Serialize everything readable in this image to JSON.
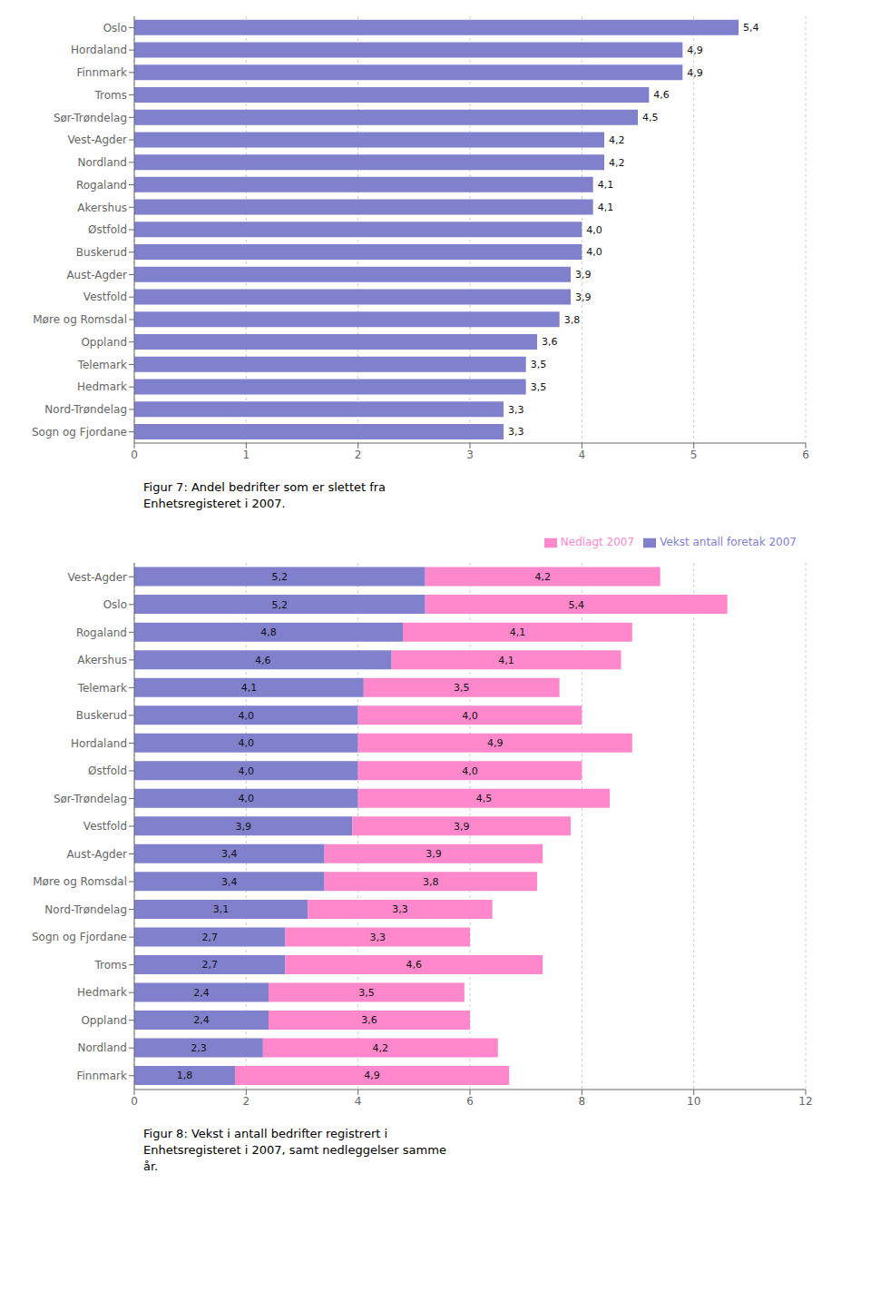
{
  "chart_data": [
    {
      "type": "bar",
      "orientation": "horizontal",
      "title": "Figur 7: Andel bedrifter som er slettet fra\nEnhetsregisteret i 2007.",
      "categories": [
        "Oslo",
        "Hordaland",
        "Finnmark",
        "Troms",
        "Sør-Trøndelag",
        "Vest-Agder",
        "Nordland",
        "Rogaland",
        "Akershus",
        "Østfold",
        "Buskerud",
        "Aust-Agder",
        "Vestfold",
        "Møre og Romsdal",
        "Oppland",
        "Telemark",
        "Hedmark",
        "Nord-Trøndelag",
        "Sogn og Fjordane"
      ],
      "values": [
        5.4,
        4.9,
        4.9,
        4.6,
        4.5,
        4.2,
        4.2,
        4.1,
        4.1,
        4.0,
        4.0,
        3.9,
        3.9,
        3.8,
        3.6,
        3.5,
        3.5,
        3.3,
        3.3
      ],
      "value_labels": [
        "5,4",
        "4,9",
        "4,9",
        "4,6",
        "4,5",
        "4,2",
        "4,2",
        "4,1",
        "4,1",
        "4,0",
        "4,0",
        "3,9",
        "3,9",
        "3,8",
        "3,6",
        "3,5",
        "3,5",
        "3,3",
        "3,3"
      ],
      "color": "#8080cc",
      "xlim": [
        0,
        6
      ],
      "xticks": [
        0,
        1,
        2,
        3,
        4,
        5,
        6
      ],
      "grid": true,
      "data_labels": true
    },
    {
      "type": "bar",
      "orientation": "horizontal",
      "stacked": true,
      "title": "Figur 8: Vekst i antall bedrifter registrert i\nEnhetsregisteret i 2007, samt nedleggelser samme\når.",
      "categories": [
        "Vest-Agder",
        "Oslo",
        "Rogaland",
        "Akershus",
        "Telemark",
        "Buskerud",
        "Hordaland",
        "Østfold",
        "Sør-Trøndelag",
        "Vestfold",
        "Aust-Agder",
        "Møre og Romsdal",
        "Nord-Trøndelag",
        "Sogn og Fjordane",
        "Troms",
        "Hedmark",
        "Oppland",
        "Nordland",
        "Finnmark"
      ],
      "series": [
        {
          "name": "Vekst antall foretak 2007",
          "color": "#8080cc",
          "values": [
            5.2,
            5.2,
            4.8,
            4.6,
            4.1,
            4.0,
            4.0,
            4.0,
            4.0,
            3.9,
            3.4,
            3.4,
            3.1,
            2.7,
            2.7,
            2.4,
            2.4,
            2.3,
            1.8
          ],
          "value_labels": [
            "5,2",
            "5,2",
            "4,8",
            "4,6",
            "4,1",
            "4,0",
            "4,0",
            "4,0",
            "4,0",
            "3,9",
            "3,4",
            "3,4",
            "3,1",
            "2,7",
            "2,7",
            "2,4",
            "2,4",
            "2,3",
            "1,8"
          ]
        },
        {
          "name": "Nedlagt 2007",
          "color": "#ff88cc",
          "values": [
            4.2,
            5.4,
            4.1,
            4.1,
            3.5,
            4.0,
            4.9,
            4.0,
            4.5,
            3.9,
            3.9,
            3.8,
            3.3,
            3.3,
            4.6,
            3.5,
            3.6,
            4.2,
            4.9
          ],
          "value_labels": [
            "4,2",
            "5,4",
            "4,1",
            "4,1",
            "3,5",
            "4,0",
            "4,9",
            "4,0",
            "4,5",
            "3,9",
            "3,9",
            "3,8",
            "3,3",
            "3,3",
            "4,6",
            "3,5",
            "3,6",
            "4,2",
            "4,9"
          ]
        }
      ],
      "xlim": [
        0,
        12
      ],
      "xticks": [
        0,
        2,
        4,
        6,
        8,
        10,
        12
      ],
      "grid": true,
      "legend": "top",
      "data_labels": true
    }
  ]
}
